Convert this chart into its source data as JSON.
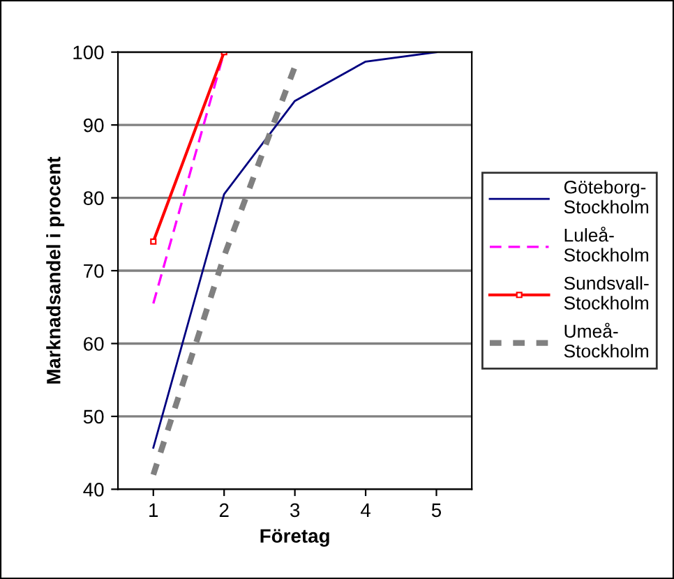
{
  "chart_data": {
    "type": "line",
    "xlabel": "Företag",
    "ylabel": "Marknadsandel i procent",
    "categories": [
      "1",
      "2",
      "3",
      "4",
      "5"
    ],
    "series": [
      {
        "name": "Göteborg-\nStockholm",
        "color": "#000080",
        "values": [
          45.7,
          80.5,
          93.3,
          98.7,
          100
        ],
        "line_style": "solid",
        "marker": "none"
      },
      {
        "name": "Luleå-\nStockholm",
        "color": "#ff00ff",
        "values": [
          65.5,
          100,
          null,
          null,
          null
        ],
        "line_style": "dashed",
        "marker": "none"
      },
      {
        "name": "Sundsvall-\nStockholm",
        "color": "#ff0000",
        "values": [
          74,
          100,
          null,
          null,
          null
        ],
        "line_style": "solid",
        "marker": "square"
      },
      {
        "name": "Umeå-\nStockholm",
        "color": "#808080",
        "values": [
          42,
          72,
          98,
          null,
          null
        ],
        "line_style": "dotted",
        "marker": "none"
      }
    ],
    "ylim": [
      40,
      100
    ],
    "yticks": [
      40,
      50,
      60,
      70,
      80,
      90,
      100
    ],
    "grid": "y",
    "legend": "right"
  }
}
